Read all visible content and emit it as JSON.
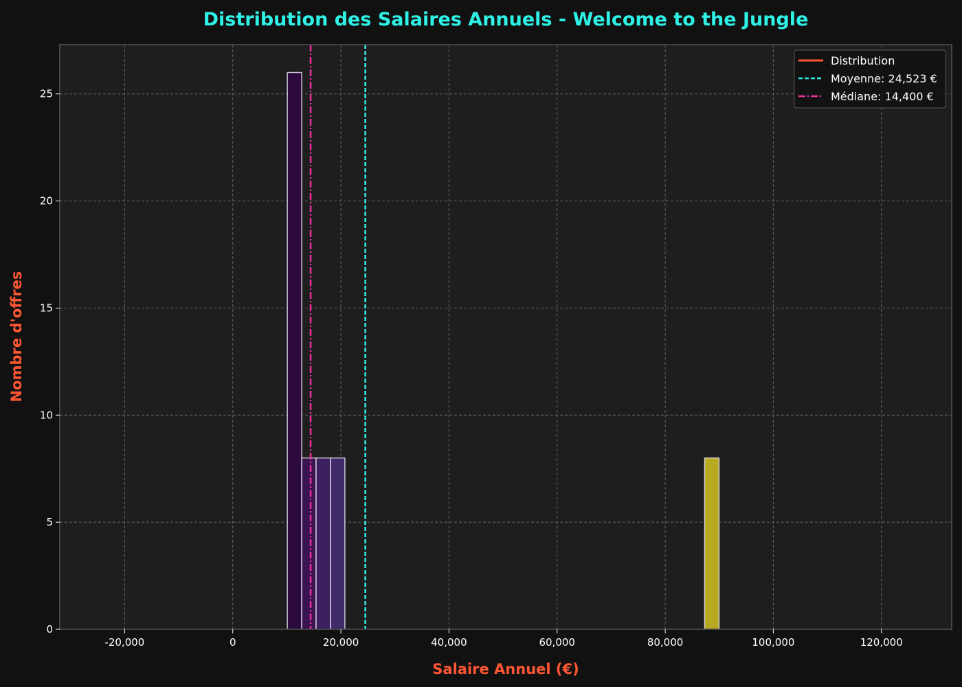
{
  "chart_data": {
    "type": "bar",
    "title": "Distribution des Salaires Annuels - Welcome to the Jungle",
    "xlabel": "Salaire Annuel (€)",
    "ylabel": "Nombre d'offres",
    "xlim": [
      -32000,
      133000
    ],
    "ylim": [
      0,
      27.3
    ],
    "x_ticks": [
      -20000,
      0,
      20000,
      40000,
      60000,
      80000,
      100000,
      120000
    ],
    "x_tick_labels": [
      "-20,000",
      "0",
      "20,000",
      "40,000",
      "60,000",
      "80,000",
      "100,000",
      "120,000"
    ],
    "y_ticks": [
      0,
      5,
      10,
      15,
      20,
      25
    ],
    "y_tick_labels": [
      "0",
      "5",
      "10",
      "15",
      "20",
      "25"
    ],
    "grid": true,
    "legend_position": "top-right",
    "bins": [
      {
        "x0": 10100,
        "x1": 12760,
        "count": 26,
        "color": "#2d0a3e"
      },
      {
        "x0": 12760,
        "x1": 15420,
        "count": 8,
        "color": "#3a1450"
      },
      {
        "x0": 15420,
        "x1": 18080,
        "count": 8,
        "color": "#3d2060"
      },
      {
        "x0": 18080,
        "x1": 20740,
        "count": 8,
        "color": "#3f2a6a"
      },
      {
        "x0": 87300,
        "x1": 89960,
        "count": 8,
        "color": "#b8a922"
      }
    ],
    "distribution_line": {
      "x_start": -25000,
      "x_end": 125800,
      "y": 0,
      "color": "#ff5733"
    },
    "mean": {
      "value": 24523,
      "label": "Moyenne: 24,523 €",
      "color": "#2ef2e6"
    },
    "median": {
      "value": 14400,
      "label": "Médiane: 14,400 €",
      "color": "#ef2fa0"
    },
    "legend": [
      {
        "label": "Distribution",
        "style": "solid",
        "color": "#ff5733"
      },
      {
        "label": "Moyenne: 24,523 €",
        "style": "dashed",
        "color": "#2ef2e6"
      },
      {
        "label": "Médiane: 14,400 €",
        "style": "dashdot",
        "color": "#ef2fa0"
      }
    ]
  }
}
